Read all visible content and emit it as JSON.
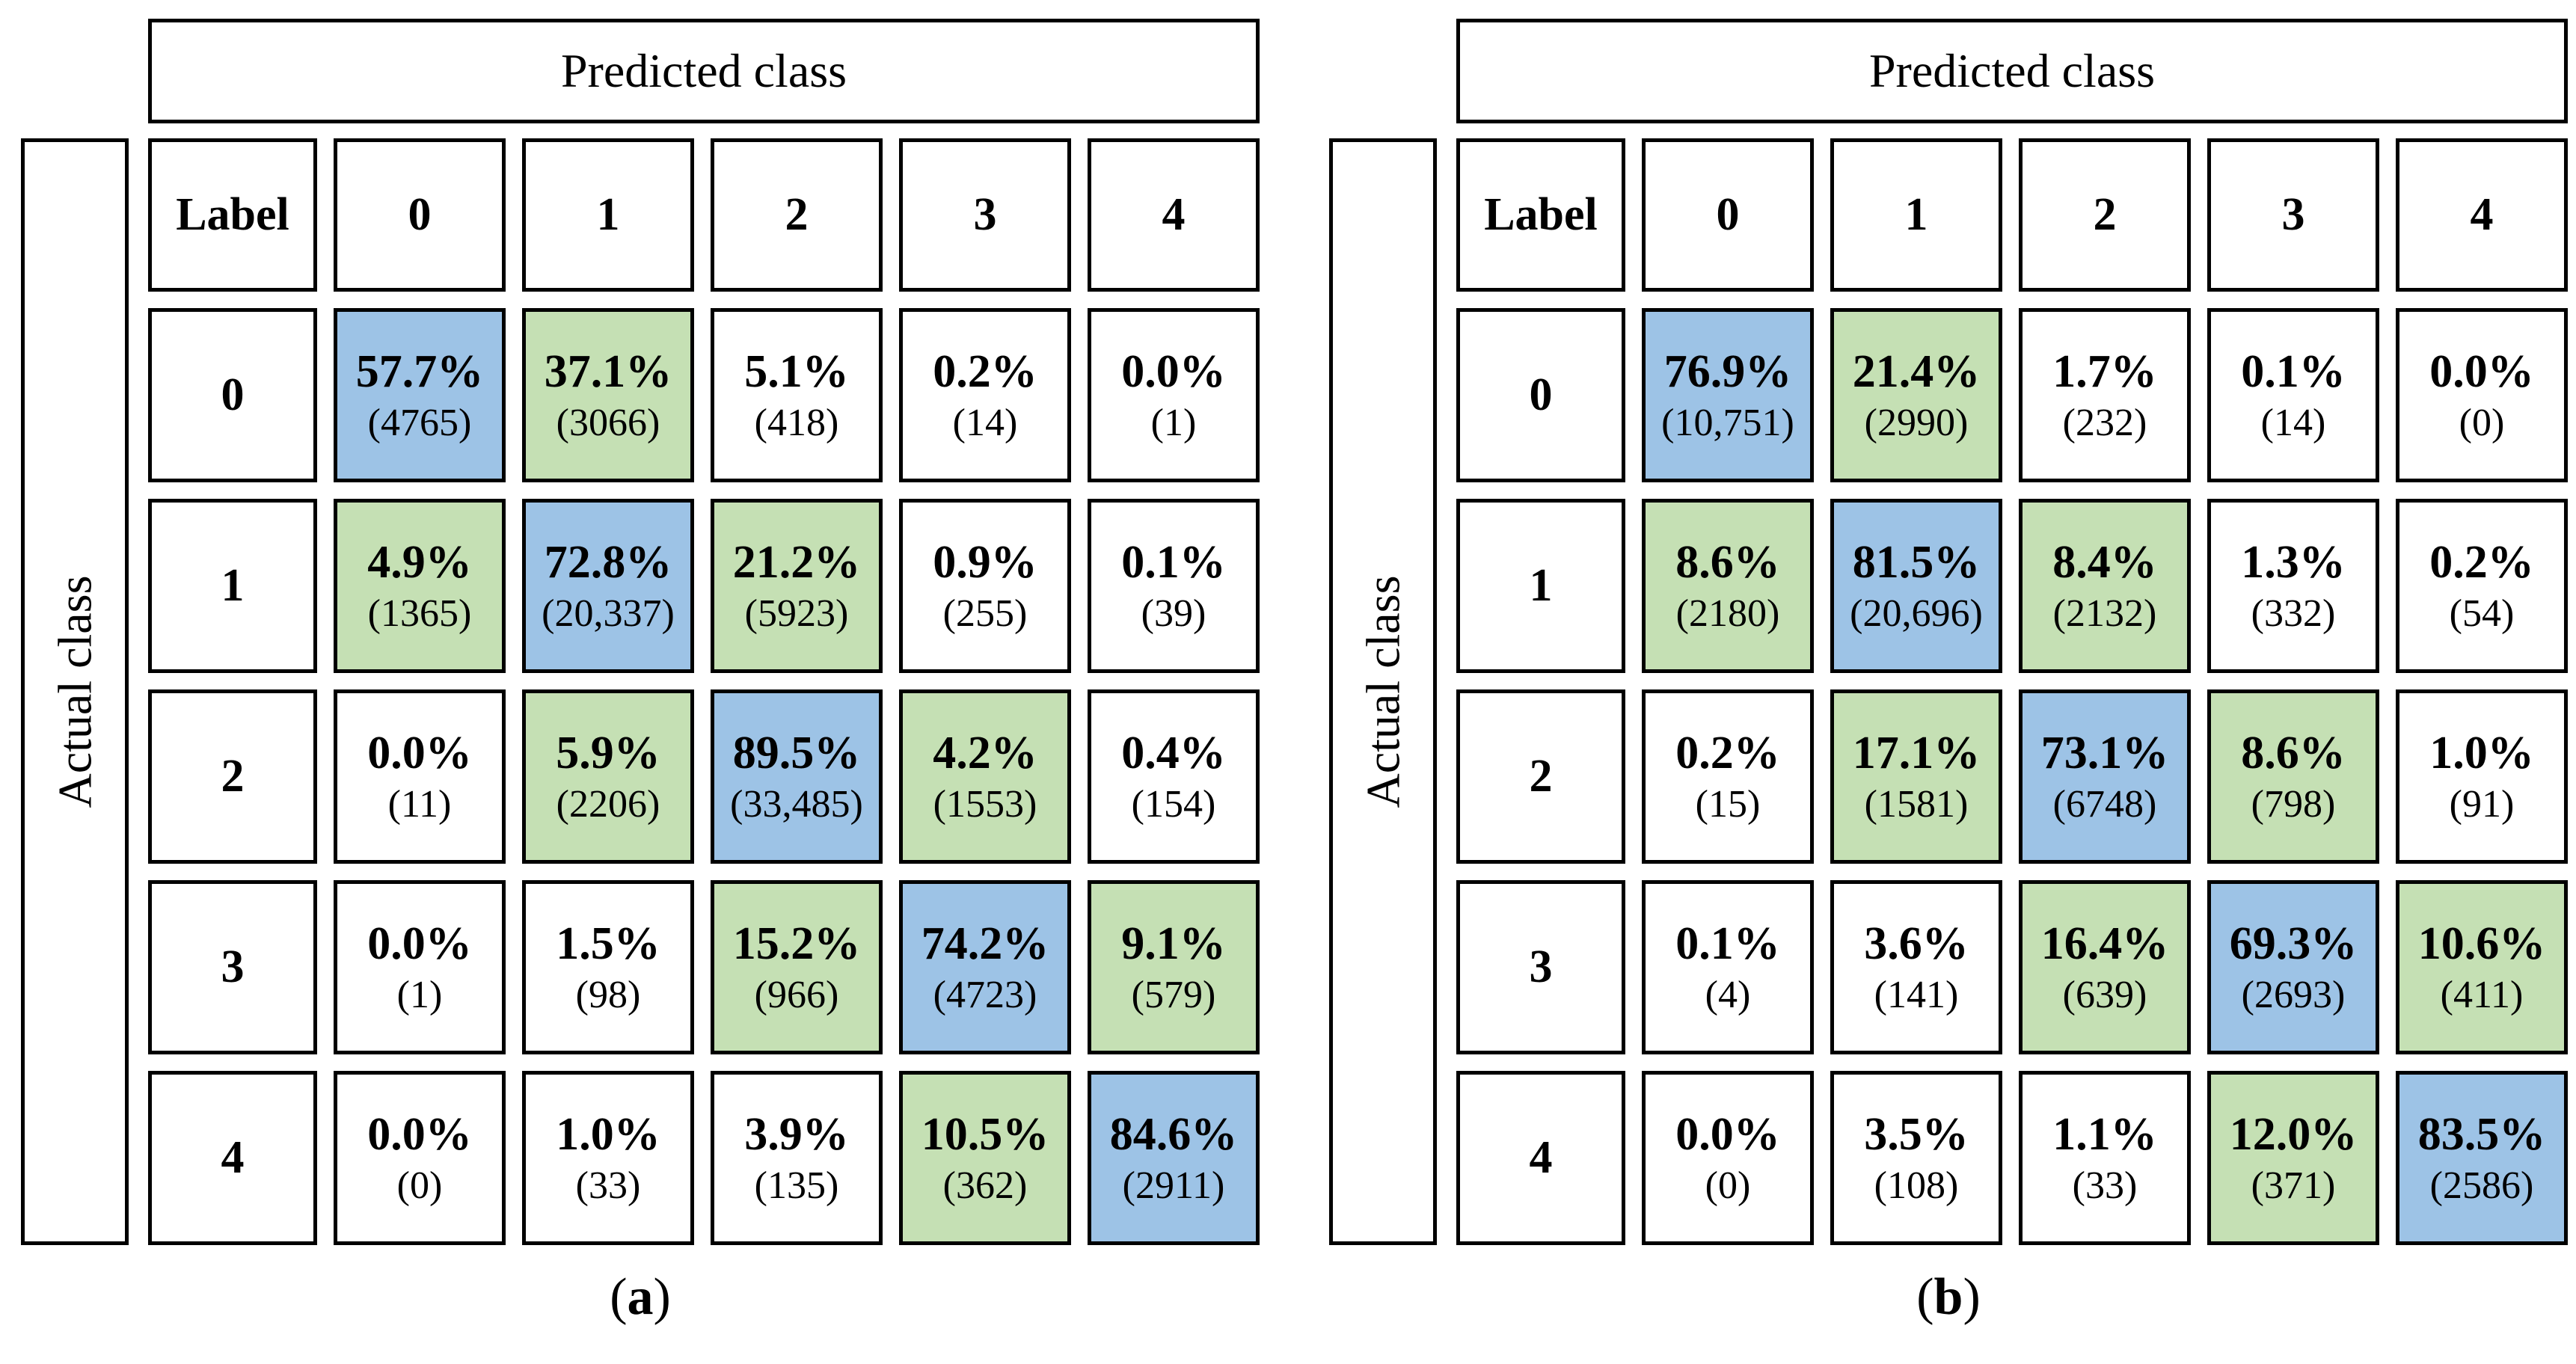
{
  "colors": {
    "diagonal_cell": "#9DC3E6",
    "adjacent_cell": "#C5E0B4",
    "default_cell": "#FFFFFF",
    "border": "#000000"
  },
  "panels": [
    {
      "id": "a",
      "predicted_header": "Predicted class",
      "actual_header": "Actual class",
      "corner_label": "Label",
      "col_headers": [
        "0",
        "1",
        "2",
        "3",
        "4"
      ],
      "row_headers": [
        "0",
        "1",
        "2",
        "3",
        "4"
      ],
      "caption": {
        "open": "(",
        "letter": "a",
        "close": ")"
      },
      "rows": [
        {
          "cells": [
            {
              "pct": "57.7%",
              "count": "(4765)",
              "tone": "blue"
            },
            {
              "pct": "37.1%",
              "count": "(3066)",
              "tone": "green"
            },
            {
              "pct": "5.1%",
              "count": "(418)",
              "tone": "white"
            },
            {
              "pct": "0.2%",
              "count": "(14)",
              "tone": "white"
            },
            {
              "pct": "0.0%",
              "count": "(1)",
              "tone": "white"
            }
          ]
        },
        {
          "cells": [
            {
              "pct": "4.9%",
              "count": "(1365)",
              "tone": "green"
            },
            {
              "pct": "72.8%",
              "count": "(20,337)",
              "tone": "blue"
            },
            {
              "pct": "21.2%",
              "count": "(5923)",
              "tone": "green"
            },
            {
              "pct": "0.9%",
              "count": "(255)",
              "tone": "white"
            },
            {
              "pct": "0.1%",
              "count": "(39)",
              "tone": "white"
            }
          ]
        },
        {
          "cells": [
            {
              "pct": "0.0%",
              "count": "(11)",
              "tone": "white"
            },
            {
              "pct": "5.9%",
              "count": "(2206)",
              "tone": "green"
            },
            {
              "pct": "89.5%",
              "count": "(33,485)",
              "tone": "blue"
            },
            {
              "pct": "4.2%",
              "count": "(1553)",
              "tone": "green"
            },
            {
              "pct": "0.4%",
              "count": "(154)",
              "tone": "white"
            }
          ]
        },
        {
          "cells": [
            {
              "pct": "0.0%",
              "count": "(1)",
              "tone": "white"
            },
            {
              "pct": "1.5%",
              "count": "(98)",
              "tone": "white"
            },
            {
              "pct": "15.2%",
              "count": "(966)",
              "tone": "green"
            },
            {
              "pct": "74.2%",
              "count": "(4723)",
              "tone": "blue"
            },
            {
              "pct": "9.1%",
              "count": "(579)",
              "tone": "green"
            }
          ]
        },
        {
          "cells": [
            {
              "pct": "0.0%",
              "count": "(0)",
              "tone": "white"
            },
            {
              "pct": "1.0%",
              "count": "(33)",
              "tone": "white"
            },
            {
              "pct": "3.9%",
              "count": "(135)",
              "tone": "white"
            },
            {
              "pct": "10.5%",
              "count": "(362)",
              "tone": "green"
            },
            {
              "pct": "84.6%",
              "count": "(2911)",
              "tone": "blue"
            }
          ]
        }
      ]
    },
    {
      "id": "b",
      "predicted_header": "Predicted class",
      "actual_header": "Actual class",
      "corner_label": "Label",
      "col_headers": [
        "0",
        "1",
        "2",
        "3",
        "4"
      ],
      "row_headers": [
        "0",
        "1",
        "2",
        "3",
        "4"
      ],
      "caption": {
        "open": "(",
        "letter": "b",
        "close": ")"
      },
      "rows": [
        {
          "cells": [
            {
              "pct": "76.9%",
              "count": "(10,751)",
              "tone": "blue"
            },
            {
              "pct": "21.4%",
              "count": "(2990)",
              "tone": "green"
            },
            {
              "pct": "1.7%",
              "count": "(232)",
              "tone": "white"
            },
            {
              "pct": "0.1%",
              "count": "(14)",
              "tone": "white"
            },
            {
              "pct": "0.0%",
              "count": "(0)",
              "tone": "white"
            }
          ]
        },
        {
          "cells": [
            {
              "pct": "8.6%",
              "count": "(2180)",
              "tone": "green"
            },
            {
              "pct": "81.5%",
              "count": "(20,696)",
              "tone": "blue"
            },
            {
              "pct": "8.4%",
              "count": "(2132)",
              "tone": "green"
            },
            {
              "pct": "1.3%",
              "count": "(332)",
              "tone": "white"
            },
            {
              "pct": "0.2%",
              "count": "(54)",
              "tone": "white"
            }
          ]
        },
        {
          "cells": [
            {
              "pct": "0.2%",
              "count": "(15)",
              "tone": "white"
            },
            {
              "pct": "17.1%",
              "count": "(1581)",
              "tone": "green"
            },
            {
              "pct": "73.1%",
              "count": "(6748)",
              "tone": "blue"
            },
            {
              "pct": "8.6%",
              "count": "(798)",
              "tone": "green"
            },
            {
              "pct": "1.0%",
              "count": "(91)",
              "tone": "white"
            }
          ]
        },
        {
          "cells": [
            {
              "pct": "0.1%",
              "count": "(4)",
              "tone": "white"
            },
            {
              "pct": "3.6%",
              "count": "(141)",
              "tone": "white"
            },
            {
              "pct": "16.4%",
              "count": "(639)",
              "tone": "green"
            },
            {
              "pct": "69.3%",
              "count": "(2693)",
              "tone": "blue"
            },
            {
              "pct": "10.6%",
              "count": "(411)",
              "tone": "green"
            }
          ]
        },
        {
          "cells": [
            {
              "pct": "0.0%",
              "count": "(0)",
              "tone": "white"
            },
            {
              "pct": "3.5%",
              "count": "(108)",
              "tone": "white"
            },
            {
              "pct": "1.1%",
              "count": "(33)",
              "tone": "white"
            },
            {
              "pct": "12.0%",
              "count": "(371)",
              "tone": "green"
            },
            {
              "pct": "83.5%",
              "count": "(2586)",
              "tone": "blue"
            }
          ]
        }
      ]
    }
  ],
  "chart_data": [
    {
      "type": "heatmap",
      "title": "(a)",
      "xlabel": "Predicted class",
      "ylabel": "Actual class",
      "x_categories": [
        "0",
        "1",
        "2",
        "3",
        "4"
      ],
      "y_categories": [
        "0",
        "1",
        "2",
        "3",
        "4"
      ],
      "percent": [
        [
          57.7,
          37.1,
          5.1,
          0.2,
          0.0
        ],
        [
          4.9,
          72.8,
          21.2,
          0.9,
          0.1
        ],
        [
          0.0,
          5.9,
          89.5,
          4.2,
          0.4
        ],
        [
          0.0,
          1.5,
          15.2,
          74.2,
          9.1
        ],
        [
          0.0,
          1.0,
          3.9,
          10.5,
          84.6
        ]
      ],
      "counts": [
        [
          4765,
          3066,
          418,
          14,
          1
        ],
        [
          1365,
          20337,
          5923,
          255,
          39
        ],
        [
          11,
          2206,
          33485,
          1553,
          154
        ],
        [
          1,
          98,
          966,
          4723,
          579
        ],
        [
          0,
          33,
          135,
          362,
          2911
        ]
      ],
      "legend_position": "none",
      "grid": false
    },
    {
      "type": "heatmap",
      "title": "(b)",
      "xlabel": "Predicted class",
      "ylabel": "Actual class",
      "x_categories": [
        "0",
        "1",
        "2",
        "3",
        "4"
      ],
      "y_categories": [
        "0",
        "1",
        "2",
        "3",
        "4"
      ],
      "percent": [
        [
          76.9,
          21.4,
          1.7,
          0.1,
          0.0
        ],
        [
          8.6,
          81.5,
          8.4,
          1.3,
          0.2
        ],
        [
          0.2,
          17.1,
          73.1,
          8.6,
          1.0
        ],
        [
          0.1,
          3.6,
          16.4,
          69.3,
          10.6
        ],
        [
          0.0,
          3.5,
          1.1,
          12.0,
          83.5
        ]
      ],
      "counts": [
        [
          10751,
          2990,
          232,
          14,
          0
        ],
        [
          2180,
          20696,
          2132,
          332,
          54
        ],
        [
          15,
          1581,
          6748,
          798,
          91
        ],
        [
          4,
          141,
          639,
          2693,
          411
        ],
        [
          0,
          108,
          33,
          371,
          2586
        ]
      ],
      "legend_position": "none",
      "grid": false
    }
  ]
}
